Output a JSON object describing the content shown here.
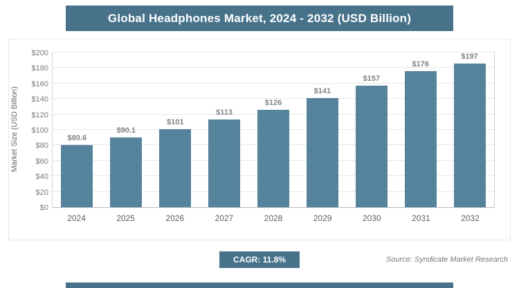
{
  "title": "Global Headphones Market, 2024 - 2032 (USD Billion)",
  "footer": {
    "cagr_label": "CAGR: 11.8%",
    "source": "Source: Syndicate Market Research"
  },
  "colors": {
    "accent": "#47728a",
    "bar": "#56839c",
    "grid": "#e3e6e8",
    "value_label": "#7f8486"
  },
  "chart_data": {
    "type": "bar",
    "title": "Global Headphones Market, 2024 - 2032 (USD Billion)",
    "categories": [
      "2024",
      "2025",
      "2026",
      "2027",
      "2028",
      "2029",
      "2030",
      "2031",
      "2032"
    ],
    "values": [
      80.6,
      90.1,
      101,
      113,
      126,
      141,
      157,
      176,
      197
    ],
    "value_labels": [
      "$80.6",
      "$90.1",
      "$101",
      "$113",
      "$126",
      "$141",
      "$157",
      "$176",
      "$197"
    ],
    "xlabel": "",
    "ylabel": "Market Size (USD Billion)",
    "ylim": [
      0,
      200
    ],
    "ytick_step": 20,
    "ytick_prefix": "$",
    "grid": true,
    "legend": false,
    "cagr": "11.8%"
  }
}
